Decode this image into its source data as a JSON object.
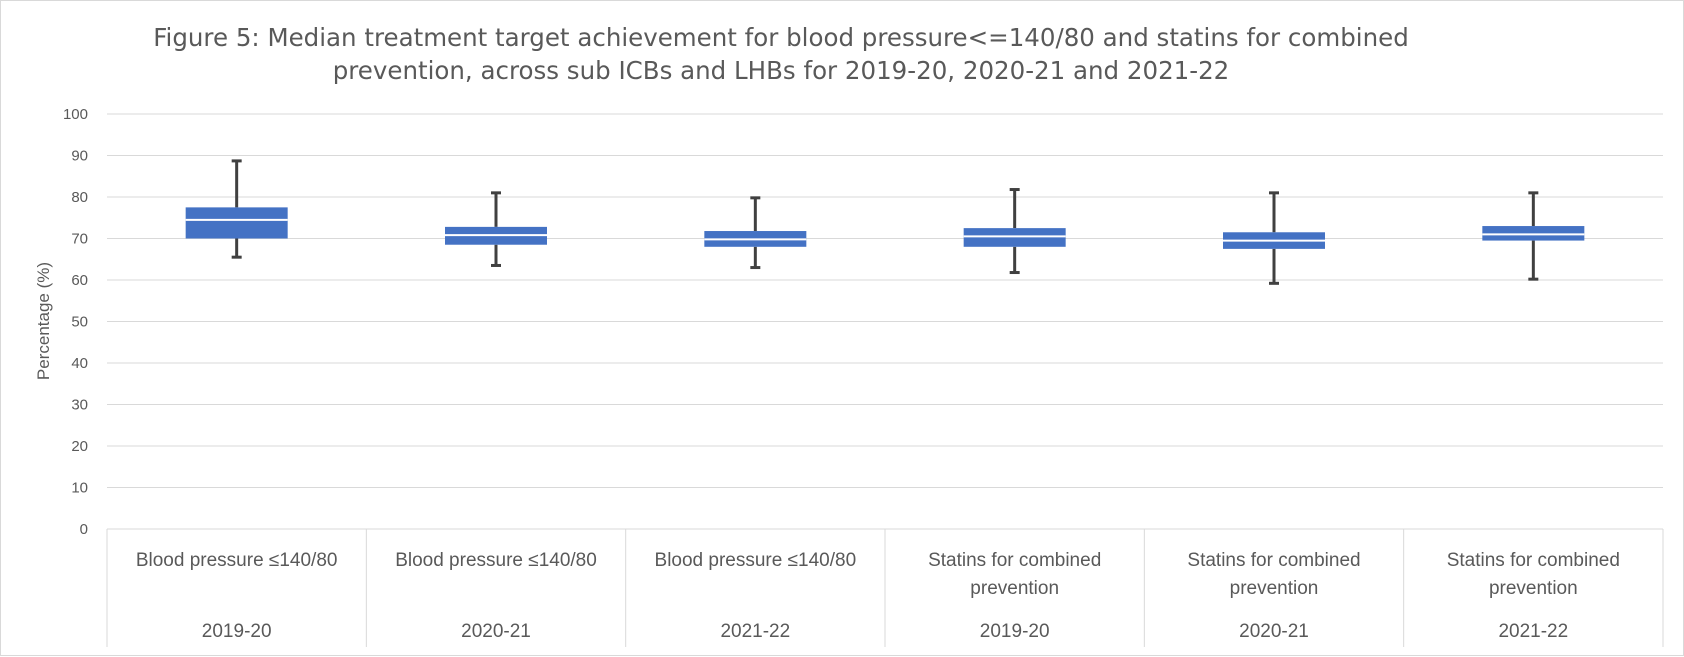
{
  "chart_data": {
    "type": "boxplot",
    "title_lines": [
      "Figure 5: Median treatment target achievement for blood pressure<=140/80 and statins for combined",
      "prevention, across sub ICBs and LHBs for 2019-20, 2020-21 and 2021-22"
    ],
    "ylabel": "Percentage (%)",
    "ylim": [
      0,
      100
    ],
    "yticks": [
      0,
      10,
      20,
      30,
      40,
      50,
      60,
      70,
      80,
      90,
      100
    ],
    "grid": true,
    "box_color": "#4472c4",
    "whisker_color": "#404040",
    "categories": [
      {
        "label_lines": [
          "Blood pressure ≤140/80"
        ],
        "year": "2019-20"
      },
      {
        "label_lines": [
          "Blood pressure ≤140/80"
        ],
        "year": "2020-21"
      },
      {
        "label_lines": [
          "Blood pressure ≤140/80"
        ],
        "year": "2021-22"
      },
      {
        "label_lines": [
          "Statins for combined",
          "prevention"
        ],
        "year": "2019-20"
      },
      {
        "label_lines": [
          "Statins for combined",
          "prevention"
        ],
        "year": "2020-21"
      },
      {
        "label_lines": [
          "Statins for combined",
          "prevention"
        ],
        "year": "2021-22"
      }
    ],
    "boxes": [
      {
        "min": 65.5,
        "q1": 70.0,
        "median": 74.5,
        "q3": 77.5,
        "max": 88.7
      },
      {
        "min": 63.5,
        "q1": 68.5,
        "median": 70.8,
        "q3": 72.8,
        "max": 81.0
      },
      {
        "min": 63.0,
        "q1": 68.0,
        "median": 69.8,
        "q3": 71.8,
        "max": 79.8
      },
      {
        "min": 61.8,
        "q1": 68.0,
        "median": 70.5,
        "q3": 72.5,
        "max": 81.8
      },
      {
        "min": 59.2,
        "q1": 67.5,
        "median": 69.5,
        "q3": 71.5,
        "max": 81.0
      },
      {
        "min": 60.2,
        "q1": 69.5,
        "median": 71.0,
        "q3": 73.0,
        "max": 81.0
      }
    ]
  }
}
